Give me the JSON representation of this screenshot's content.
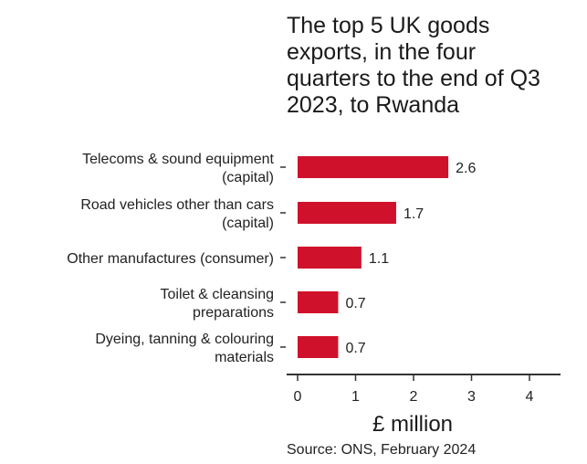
{
  "chart_data": {
    "type": "bar",
    "orientation": "horizontal",
    "title_lines": [
      "The top 5 UK goods",
      "exports, in the four",
      "quarters to the end of Q3",
      "2023, to Rwanda"
    ],
    "categories": [
      [
        "Telecoms & sound equipment",
        "(capital)"
      ],
      [
        "Road vehicles other than cars",
        "(capital)"
      ],
      [
        "Other manufactures (consumer)"
      ],
      [
        "Toilet & cleansing",
        "preparations"
      ],
      [
        "Dyeing, tanning & colouring",
        "materials"
      ]
    ],
    "values": [
      2.6,
      1.7,
      1.1,
      0.7,
      0.7
    ],
    "value_labels": [
      "2.6",
      "1.7",
      "1.1",
      "0.7",
      "0.7"
    ],
    "xlabel": "£ million",
    "xlim": [
      -0.2,
      4.5
    ],
    "xticks": [
      0,
      1,
      2,
      3,
      4
    ],
    "grid": false,
    "legend": "none",
    "bar_color": "#d0112b",
    "source": "Source: ONS, February 2024"
  }
}
